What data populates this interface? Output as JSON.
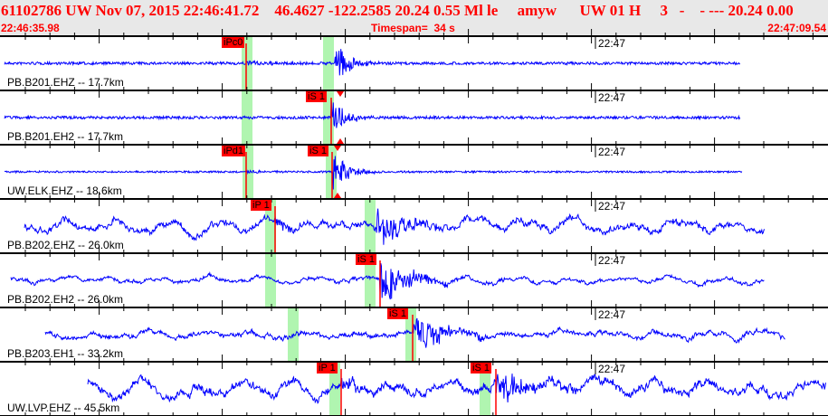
{
  "header": {
    "title": "61102786 UW Nov 07, 2015 22:46:41.72    46.4627 -122.2585 20.24 0.55 Ml le     amyw      UW 01 H     3   -    - --- 20.24 0.00",
    "start_time": "22:46:35.98",
    "timespan": "Timespan=  34 s",
    "end_time": "22:47:09.54"
  },
  "colors": {
    "trace": "#0000ff",
    "pick": "#ff0000",
    "window": "#b0f5b0",
    "header_bg": "#e8e8e8",
    "header_text": "#ff0000"
  },
  "channels": [
    {
      "label": "PB.B201.EHZ -- 17.7km",
      "time_mark": "22:47",
      "picks": [
        "iPc0"
      ]
    },
    {
      "label": "PB.B201.EH2 -- 17.7km",
      "time_mark": "22:47",
      "picks": [
        "iS 1"
      ]
    },
    {
      "label": "UW.ELK.EHZ -- 18.6km",
      "time_mark": "22:47",
      "picks": [
        "iPd1",
        "iS 1"
      ]
    },
    {
      "label": "PB.B202.EHZ -- 26.0km",
      "time_mark": "22:47",
      "picks": [
        "iP 1"
      ]
    },
    {
      "label": "PB.B202.EH2 -- 26.0km",
      "time_mark": "22:47",
      "picks": [
        "iS 1"
      ]
    },
    {
      "label": "PB.B203.EH1 -- 33.2km",
      "time_mark": "22:47",
      "picks": [
        "iS 1"
      ]
    },
    {
      "label": "UW.LVP.EHZ -- 45.5km",
      "time_mark": "22:47",
      "picks": [
        "iP 1",
        "iS 1"
      ]
    }
  ]
}
